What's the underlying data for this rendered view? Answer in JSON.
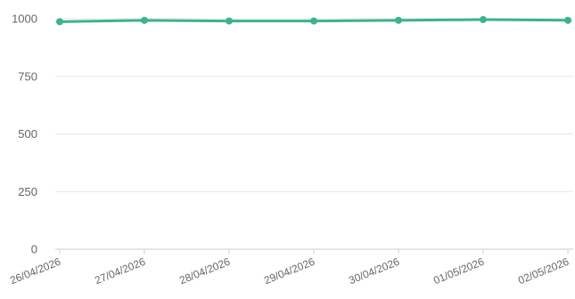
{
  "chart_data": {
    "type": "line",
    "title": "",
    "xlabel": "",
    "ylabel": "",
    "categories": [
      "26/04/2026",
      "27/04/2026",
      "28/04/2026",
      "29/04/2026",
      "30/04/2026",
      "01/05/2026",
      "02/05/2026"
    ],
    "series": [
      {
        "values": [
          987,
          993,
          990,
          990,
          993,
          996,
          993
        ],
        "color": "#3bb38e"
      }
    ],
    "ylim": [
      0,
      1000
    ],
    "yticks": [
      0,
      250,
      500,
      750,
      1000
    ],
    "grid": true,
    "legend": "none",
    "colors": {
      "line": "#3bb38e",
      "grid": "#e6e6e6",
      "axis": "#cccccc",
      "tick_text": "#666666"
    }
  }
}
